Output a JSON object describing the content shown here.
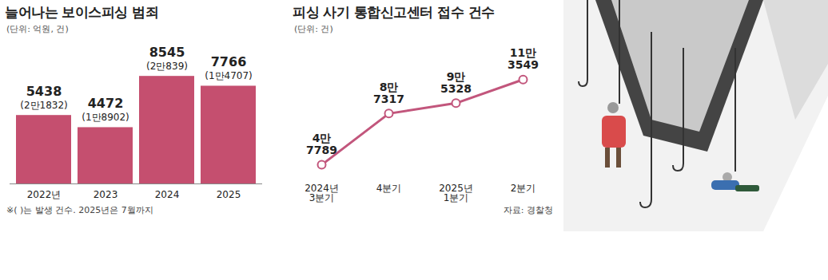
{
  "chart_data": [
    {
      "type": "bar",
      "title": "늘어나는 보이스피싱 범죄",
      "subtitle": "(단위: 억원, 건)",
      "categories": [
        "2022년",
        "2023",
        "2024",
        "2025"
      ],
      "values": [
        5438,
        4472,
        8545,
        7766
      ],
      "counts": [
        21832,
        18902,
        20839,
        14707
      ],
      "count_labels": [
        "(2만1832)",
        "(1만8902)",
        "(2만839)",
        "(1만4707)"
      ],
      "color": "#c54f6f",
      "ylim": [
        0,
        9000
      ],
      "data_labels": true,
      "tick_labels": "x",
      "grid": false,
      "note": "※( )는 발생 건수. 2025년은 7월까지"
    },
    {
      "type": "line",
      "title": "피싱 사기 통합신고센터 접수 건수",
      "subtitle": "(단위: 건)",
      "categories": [
        "2024년\n3분기",
        "4분기",
        "2025년\n1분기",
        "2분기"
      ],
      "values": [
        47789,
        87317,
        95328,
        113549
      ],
      "value_labels": [
        "4만\n7789",
        "8만\n7317",
        "9만\n5328",
        "11만\n3549"
      ],
      "color": "#c2567c",
      "marker": "circle",
      "ylim": [
        38000,
        118000
      ],
      "data_labels": true,
      "tick_labels": "x",
      "grid": false,
      "source": "자료: 경찰청"
    }
  ]
}
